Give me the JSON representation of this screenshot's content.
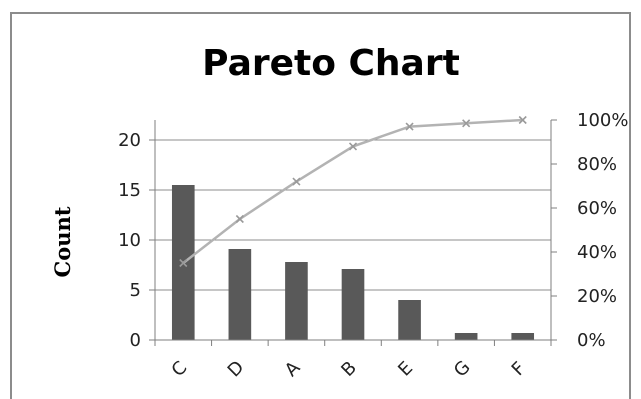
{
  "chart_data": {
    "type": "bar",
    "title": "Pareto Chart",
    "ylabel": "Count",
    "categories": [
      "C",
      "D",
      "A",
      "B",
      "E",
      "G",
      "F"
    ],
    "series": [
      {
        "type": "bar",
        "values": [
          15.5,
          9.1,
          7.8,
          7.1,
          4.0,
          0.7,
          0.7
        ],
        "color": "#595959"
      },
      {
        "type": "line",
        "axis": "right",
        "values": [
          35,
          55,
          72,
          88,
          97,
          98.5,
          100
        ],
        "color": "#b3b3b3",
        "marker": "x"
      }
    ],
    "ylim": [
      0,
      22
    ],
    "yticks": [
      "0",
      "5",
      "10",
      "15",
      "20"
    ],
    "y2lim": [
      0,
      100
    ],
    "y2ticks": [
      "0%",
      "20%",
      "40%",
      "60%",
      "80%",
      "100%"
    ],
    "grid": true,
    "legend": "none"
  }
}
